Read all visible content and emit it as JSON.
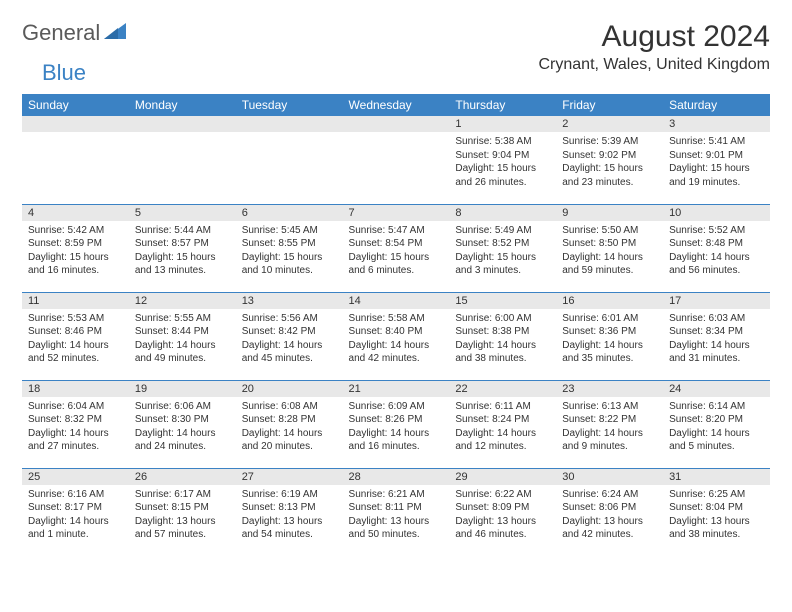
{
  "logo": {
    "text1": "General",
    "text2": "Blue"
  },
  "title": "August 2024",
  "location": "Crynant, Wales, United Kingdom",
  "colors": {
    "header_bg": "#3b82c4",
    "header_text": "#ffffff",
    "daynum_bg": "#e8e8e8",
    "border": "#3b82c4",
    "text": "#333333",
    "logo_gray": "#5a5a5a",
    "logo_blue": "#3b82c4"
  },
  "weekdays": [
    "Sunday",
    "Monday",
    "Tuesday",
    "Wednesday",
    "Thursday",
    "Friday",
    "Saturday"
  ],
  "weeks": [
    [
      {
        "n": "",
        "sr": "",
        "ss": "",
        "dl": ""
      },
      {
        "n": "",
        "sr": "",
        "ss": "",
        "dl": ""
      },
      {
        "n": "",
        "sr": "",
        "ss": "",
        "dl": ""
      },
      {
        "n": "",
        "sr": "",
        "ss": "",
        "dl": ""
      },
      {
        "n": "1",
        "sr": "Sunrise: 5:38 AM",
        "ss": "Sunset: 9:04 PM",
        "dl": "Daylight: 15 hours and 26 minutes."
      },
      {
        "n": "2",
        "sr": "Sunrise: 5:39 AM",
        "ss": "Sunset: 9:02 PM",
        "dl": "Daylight: 15 hours and 23 minutes."
      },
      {
        "n": "3",
        "sr": "Sunrise: 5:41 AM",
        "ss": "Sunset: 9:01 PM",
        "dl": "Daylight: 15 hours and 19 minutes."
      }
    ],
    [
      {
        "n": "4",
        "sr": "Sunrise: 5:42 AM",
        "ss": "Sunset: 8:59 PM",
        "dl": "Daylight: 15 hours and 16 minutes."
      },
      {
        "n": "5",
        "sr": "Sunrise: 5:44 AM",
        "ss": "Sunset: 8:57 PM",
        "dl": "Daylight: 15 hours and 13 minutes."
      },
      {
        "n": "6",
        "sr": "Sunrise: 5:45 AM",
        "ss": "Sunset: 8:55 PM",
        "dl": "Daylight: 15 hours and 10 minutes."
      },
      {
        "n": "7",
        "sr": "Sunrise: 5:47 AM",
        "ss": "Sunset: 8:54 PM",
        "dl": "Daylight: 15 hours and 6 minutes."
      },
      {
        "n": "8",
        "sr": "Sunrise: 5:49 AM",
        "ss": "Sunset: 8:52 PM",
        "dl": "Daylight: 15 hours and 3 minutes."
      },
      {
        "n": "9",
        "sr": "Sunrise: 5:50 AM",
        "ss": "Sunset: 8:50 PM",
        "dl": "Daylight: 14 hours and 59 minutes."
      },
      {
        "n": "10",
        "sr": "Sunrise: 5:52 AM",
        "ss": "Sunset: 8:48 PM",
        "dl": "Daylight: 14 hours and 56 minutes."
      }
    ],
    [
      {
        "n": "11",
        "sr": "Sunrise: 5:53 AM",
        "ss": "Sunset: 8:46 PM",
        "dl": "Daylight: 14 hours and 52 minutes."
      },
      {
        "n": "12",
        "sr": "Sunrise: 5:55 AM",
        "ss": "Sunset: 8:44 PM",
        "dl": "Daylight: 14 hours and 49 minutes."
      },
      {
        "n": "13",
        "sr": "Sunrise: 5:56 AM",
        "ss": "Sunset: 8:42 PM",
        "dl": "Daylight: 14 hours and 45 minutes."
      },
      {
        "n": "14",
        "sr": "Sunrise: 5:58 AM",
        "ss": "Sunset: 8:40 PM",
        "dl": "Daylight: 14 hours and 42 minutes."
      },
      {
        "n": "15",
        "sr": "Sunrise: 6:00 AM",
        "ss": "Sunset: 8:38 PM",
        "dl": "Daylight: 14 hours and 38 minutes."
      },
      {
        "n": "16",
        "sr": "Sunrise: 6:01 AM",
        "ss": "Sunset: 8:36 PM",
        "dl": "Daylight: 14 hours and 35 minutes."
      },
      {
        "n": "17",
        "sr": "Sunrise: 6:03 AM",
        "ss": "Sunset: 8:34 PM",
        "dl": "Daylight: 14 hours and 31 minutes."
      }
    ],
    [
      {
        "n": "18",
        "sr": "Sunrise: 6:04 AM",
        "ss": "Sunset: 8:32 PM",
        "dl": "Daylight: 14 hours and 27 minutes."
      },
      {
        "n": "19",
        "sr": "Sunrise: 6:06 AM",
        "ss": "Sunset: 8:30 PM",
        "dl": "Daylight: 14 hours and 24 minutes."
      },
      {
        "n": "20",
        "sr": "Sunrise: 6:08 AM",
        "ss": "Sunset: 8:28 PM",
        "dl": "Daylight: 14 hours and 20 minutes."
      },
      {
        "n": "21",
        "sr": "Sunrise: 6:09 AM",
        "ss": "Sunset: 8:26 PM",
        "dl": "Daylight: 14 hours and 16 minutes."
      },
      {
        "n": "22",
        "sr": "Sunrise: 6:11 AM",
        "ss": "Sunset: 8:24 PM",
        "dl": "Daylight: 14 hours and 12 minutes."
      },
      {
        "n": "23",
        "sr": "Sunrise: 6:13 AM",
        "ss": "Sunset: 8:22 PM",
        "dl": "Daylight: 14 hours and 9 minutes."
      },
      {
        "n": "24",
        "sr": "Sunrise: 6:14 AM",
        "ss": "Sunset: 8:20 PM",
        "dl": "Daylight: 14 hours and 5 minutes."
      }
    ],
    [
      {
        "n": "25",
        "sr": "Sunrise: 6:16 AM",
        "ss": "Sunset: 8:17 PM",
        "dl": "Daylight: 14 hours and 1 minute."
      },
      {
        "n": "26",
        "sr": "Sunrise: 6:17 AM",
        "ss": "Sunset: 8:15 PM",
        "dl": "Daylight: 13 hours and 57 minutes."
      },
      {
        "n": "27",
        "sr": "Sunrise: 6:19 AM",
        "ss": "Sunset: 8:13 PM",
        "dl": "Daylight: 13 hours and 54 minutes."
      },
      {
        "n": "28",
        "sr": "Sunrise: 6:21 AM",
        "ss": "Sunset: 8:11 PM",
        "dl": "Daylight: 13 hours and 50 minutes."
      },
      {
        "n": "29",
        "sr": "Sunrise: 6:22 AM",
        "ss": "Sunset: 8:09 PM",
        "dl": "Daylight: 13 hours and 46 minutes."
      },
      {
        "n": "30",
        "sr": "Sunrise: 6:24 AM",
        "ss": "Sunset: 8:06 PM",
        "dl": "Daylight: 13 hours and 42 minutes."
      },
      {
        "n": "31",
        "sr": "Sunrise: 6:25 AM",
        "ss": "Sunset: 8:04 PM",
        "dl": "Daylight: 13 hours and 38 minutes."
      }
    ]
  ]
}
